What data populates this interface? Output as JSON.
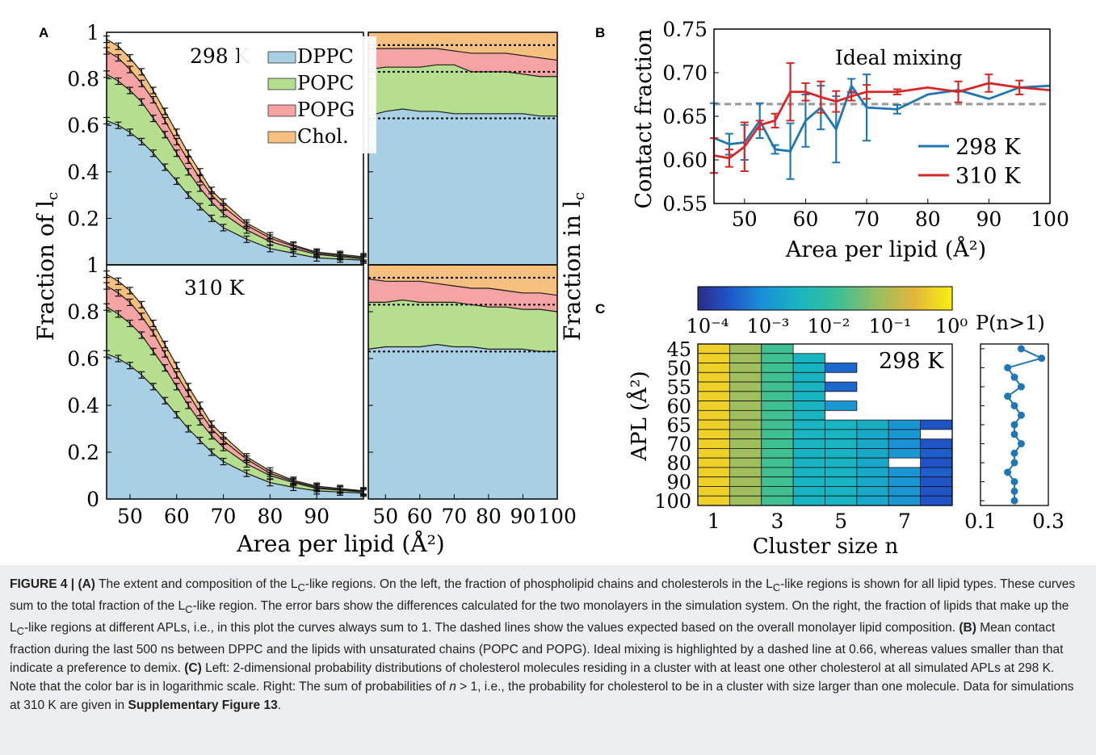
{
  "panel_labels": {
    "a": "A",
    "b": "B",
    "c": "C"
  },
  "colors": {
    "dppc": "#a8cfe3",
    "popc": "#b5df8f",
    "popg": "#f6a3a3",
    "chol": "#f7c07e",
    "blue_line": "#1f77b4",
    "red_line": "#d62728",
    "ideal_line": "#999999"
  },
  "panel_a": {
    "ylabel_left": "Fraction of l",
    "ylabel_left_sub": "c",
    "ylabel_right": "Fraction in l",
    "ylabel_right_sub": "c",
    "xlabel": "Area per lipid (Å²)",
    "temp_top": "298 K",
    "temp_bottom": "310 K",
    "legend": [
      "DPPC",
      "POPC",
      "POPG",
      "Chol."
    ],
    "yticks": [
      "0",
      "0.2",
      "0.4",
      "0.6",
      "0.8",
      "1"
    ],
    "xticks_left": [
      "50",
      "60",
      "70",
      "80",
      "90"
    ],
    "xticks_right": [
      "50",
      "60",
      "70",
      "80",
      "90",
      "100"
    ]
  },
  "panel_b": {
    "ylabel": "Contact fraction",
    "xlabel": "Area per lipid (Å²)",
    "annotation": "Ideal mixing",
    "legend": [
      "298 K",
      "310 K"
    ],
    "yticks": [
      "0.55",
      "0.60",
      "0.65",
      "0.70",
      "0.75"
    ],
    "xticks": [
      "50",
      "60",
      "70",
      "80",
      "90",
      "100"
    ]
  },
  "panel_c": {
    "colorbar_ticks": [
      "10⁻⁴",
      "10⁻³",
      "10⁻²",
      "10⁻¹",
      "10⁰"
    ],
    "side_title": "P(n>1)",
    "temp": "298 K",
    "ylabel": "APL (Å²)",
    "xlabel": "Cluster size n",
    "yticks": [
      "45",
      "50",
      "55",
      "60",
      "65",
      "70",
      "80",
      "90",
      "100"
    ],
    "xticks": [
      "1",
      "3",
      "5",
      "7"
    ],
    "side_xticks": [
      "0.1",
      "0.3"
    ]
  },
  "chart_data": [
    {
      "type": "area",
      "panel": "A-left-298K",
      "x": [
        45,
        47.5,
        50,
        52.5,
        55,
        57.5,
        60,
        62.5,
        65,
        67.5,
        70,
        75,
        80,
        85,
        90,
        95,
        100
      ],
      "series": [
        {
          "name": "DPPC",
          "cumulative": [
            0.62,
            0.6,
            0.57,
            0.53,
            0.48,
            0.42,
            0.36,
            0.3,
            0.25,
            0.2,
            0.16,
            0.11,
            0.07,
            0.05,
            0.03,
            0.025,
            0.02
          ]
        },
        {
          "name": "POPC",
          "cumulative": [
            0.82,
            0.79,
            0.75,
            0.7,
            0.63,
            0.56,
            0.48,
            0.4,
            0.33,
            0.27,
            0.22,
            0.15,
            0.1,
            0.07,
            0.045,
            0.035,
            0.025
          ]
        },
        {
          "name": "POPG",
          "cumulative": [
            0.92,
            0.89,
            0.84,
            0.78,
            0.71,
            0.62,
            0.53,
            0.45,
            0.37,
            0.3,
            0.25,
            0.17,
            0.115,
            0.08,
            0.05,
            0.04,
            0.03
          ]
        },
        {
          "name": "Chol.",
          "cumulative": [
            0.97,
            0.94,
            0.89,
            0.83,
            0.75,
            0.66,
            0.57,
            0.48,
            0.4,
            0.32,
            0.27,
            0.18,
            0.125,
            0.085,
            0.055,
            0.045,
            0.035
          ]
        }
      ],
      "ylim": [
        0,
        1
      ],
      "xlim": [
        45,
        100
      ]
    },
    {
      "type": "area",
      "panel": "A-right-298K",
      "x": [
        45,
        50,
        55,
        60,
        65,
        70,
        75,
        80,
        85,
        90,
        95,
        100
      ],
      "series": [
        {
          "name": "DPPC",
          "cumulative": [
            0.64,
            0.66,
            0.67,
            0.66,
            0.66,
            0.65,
            0.65,
            0.65,
            0.65,
            0.65,
            0.64,
            0.64
          ]
        },
        {
          "name": "POPC",
          "cumulative": [
            0.84,
            0.85,
            0.85,
            0.85,
            0.86,
            0.86,
            0.83,
            0.83,
            0.83,
            0.82,
            0.81,
            0.81
          ]
        },
        {
          "name": "POPG",
          "cumulative": [
            0.93,
            0.93,
            0.93,
            0.93,
            0.93,
            0.92,
            0.91,
            0.91,
            0.91,
            0.9,
            0.89,
            0.88
          ]
        },
        {
          "name": "Chol.",
          "cumulative": [
            1,
            1,
            1,
            1,
            1,
            1,
            1,
            1,
            1,
            1,
            1,
            1
          ]
        }
      ],
      "ideal_lines": [
        0.63,
        0.83,
        0.945
      ],
      "ylim": [
        0,
        1
      ],
      "xlim": [
        45,
        100
      ]
    },
    {
      "type": "area",
      "panel": "A-left-310K",
      "x": [
        45,
        47.5,
        50,
        52.5,
        55,
        57.5,
        60,
        62.5,
        65,
        67.5,
        70,
        75,
        80,
        85,
        90,
        95,
        100
      ],
      "series": [
        {
          "name": "DPPC",
          "cumulative": [
            0.62,
            0.6,
            0.57,
            0.53,
            0.48,
            0.42,
            0.36,
            0.3,
            0.25,
            0.2,
            0.16,
            0.11,
            0.07,
            0.05,
            0.035,
            0.03,
            0.025
          ]
        },
        {
          "name": "POPC",
          "cumulative": [
            0.82,
            0.79,
            0.75,
            0.7,
            0.63,
            0.56,
            0.48,
            0.4,
            0.33,
            0.27,
            0.22,
            0.15,
            0.1,
            0.07,
            0.045,
            0.038,
            0.03
          ]
        },
        {
          "name": "POPG",
          "cumulative": [
            0.91,
            0.88,
            0.84,
            0.78,
            0.71,
            0.62,
            0.53,
            0.45,
            0.37,
            0.3,
            0.25,
            0.17,
            0.11,
            0.075,
            0.05,
            0.04,
            0.033
          ]
        },
        {
          "name": "Chol.",
          "cumulative": [
            0.96,
            0.93,
            0.89,
            0.83,
            0.75,
            0.66,
            0.57,
            0.48,
            0.4,
            0.32,
            0.27,
            0.18,
            0.12,
            0.08,
            0.055,
            0.045,
            0.035
          ]
        }
      ],
      "ylim": [
        0,
        1
      ],
      "xlim": [
        45,
        100
      ]
    },
    {
      "type": "area",
      "panel": "A-right-310K",
      "x": [
        45,
        50,
        55,
        60,
        65,
        70,
        75,
        80,
        85,
        90,
        95,
        100
      ],
      "series": [
        {
          "name": "DPPC",
          "cumulative": [
            0.64,
            0.65,
            0.65,
            0.65,
            0.66,
            0.65,
            0.65,
            0.64,
            0.64,
            0.64,
            0.63,
            0.63
          ]
        },
        {
          "name": "POPC",
          "cumulative": [
            0.84,
            0.84,
            0.85,
            0.84,
            0.84,
            0.84,
            0.83,
            0.82,
            0.82,
            0.81,
            0.81,
            0.8
          ]
        },
        {
          "name": "POPG",
          "cumulative": [
            0.94,
            0.93,
            0.93,
            0.93,
            0.92,
            0.91,
            0.9,
            0.9,
            0.89,
            0.88,
            0.88,
            0.87
          ]
        },
        {
          "name": "Chol.",
          "cumulative": [
            1,
            1,
            1,
            1,
            1,
            1,
            1,
            1,
            1,
            1,
            1,
            1
          ]
        }
      ],
      "ideal_lines": [
        0.63,
        0.83,
        0.945
      ],
      "ylim": [
        0,
        1
      ],
      "xlim": [
        45,
        100
      ]
    },
    {
      "type": "line",
      "panel": "B",
      "x": [
        45,
        47.5,
        50,
        52.5,
        55,
        57.5,
        60,
        62.5,
        65,
        67.5,
        70,
        75,
        80,
        85,
        90,
        95,
        100
      ],
      "series": [
        {
          "name": "298 K",
          "values": [
            0.625,
            0.618,
            0.62,
            0.645,
            0.612,
            0.61,
            0.645,
            0.66,
            0.635,
            0.685,
            0.66,
            0.658,
            0.675,
            0.68,
            0.67,
            0.683,
            0.685
          ],
          "errors": [
            0.04,
            0.012,
            0.02,
            0.02,
            0.005,
            0.032,
            0.03,
            0.025,
            0.038,
            0.008,
            0.038,
            0.005,
            0,
            0,
            0,
            0,
            0
          ]
        },
        {
          "name": "310 K",
          "values": [
            0.605,
            0.602,
            0.615,
            0.64,
            0.645,
            0.678,
            0.678,
            0.672,
            0.667,
            0.673,
            0.678,
            0.678,
            0.683,
            0.678,
            0.688,
            0.683,
            0.68
          ],
          "errors": [
            0.02,
            0.01,
            0.028,
            0.005,
            0.008,
            0.033,
            0.01,
            0.018,
            0.012,
            0.005,
            0.008,
            0.003,
            0,
            0.012,
            0.01,
            0.008,
            0
          ]
        }
      ],
      "ideal_mixing": 0.664,
      "xlim": [
        45,
        100
      ],
      "ylim": [
        0.55,
        0.75
      ]
    },
    {
      "type": "heatmap",
      "panel": "C-left",
      "rows": [
        "45",
        "47.5",
        "50",
        "52.5",
        "55",
        "57.5",
        "60",
        "62.5",
        "65",
        "67.5",
        "70",
        "75",
        "80",
        "85",
        "90",
        "95",
        "100"
      ],
      "columns": [
        1,
        2,
        3,
        4,
        5,
        6,
        7,
        8
      ],
      "log10_values": [
        [
          -0.35,
          -1.2,
          -1.9,
          null,
          null,
          null,
          null,
          null
        ],
        [
          -0.35,
          -1.2,
          -1.9,
          -2.6,
          null,
          null,
          null,
          null
        ],
        [
          -0.35,
          -1.2,
          -1.9,
          -2.6,
          -3.6,
          null,
          null,
          null
        ],
        [
          -0.35,
          -1.2,
          -1.9,
          -2.6,
          null,
          null,
          null,
          null
        ],
        [
          -0.35,
          -1.2,
          -1.9,
          -2.6,
          -3.6,
          null,
          null,
          null
        ],
        [
          -0.35,
          -1.2,
          -1.9,
          -2.6,
          null,
          null,
          null,
          null
        ],
        [
          -0.35,
          -1.2,
          -1.9,
          -2.6,
          -3.1,
          null,
          null,
          null
        ],
        [
          -0.35,
          -1.2,
          -1.9,
          -2.6,
          null,
          null,
          null,
          null
        ],
        [
          -0.35,
          -1.2,
          -1.9,
          -2.6,
          -2.6,
          -2.7,
          -3.1,
          -3.8
        ],
        [
          -0.35,
          -1.2,
          -1.9,
          -2.6,
          -2.6,
          -2.8,
          -3.1,
          null
        ],
        [
          -0.35,
          -1.2,
          -1.9,
          -2.6,
          -2.6,
          -2.8,
          -3.2,
          -3.8
        ],
        [
          -0.35,
          -1.2,
          -1.9,
          -2.6,
          -2.6,
          -2.8,
          -3.1,
          -3.7
        ],
        [
          -0.35,
          -1.2,
          -1.9,
          -2.6,
          -2.6,
          -2.8,
          null,
          -3.8
        ],
        [
          -0.35,
          -1.2,
          -1.9,
          -2.6,
          -2.6,
          -2.8,
          -3.1,
          -3.7
        ],
        [
          -0.35,
          -1.2,
          -1.9,
          -2.6,
          -2.6,
          -2.8,
          -3.1,
          -3.8
        ],
        [
          -0.35,
          -1.2,
          -1.9,
          -2.6,
          -2.6,
          -2.8,
          -3.1,
          -3.8
        ],
        [
          -0.35,
          -1.2,
          -1.9,
          -2.6,
          -2.6,
          -2.8,
          -3.1,
          -3.8
        ]
      ],
      "colorbar_range": [
        -4.3,
        0
      ]
    },
    {
      "type": "line",
      "panel": "C-right",
      "y": [
        45,
        47.5,
        50,
        52.5,
        55,
        57.5,
        60,
        62.5,
        65,
        67.5,
        70,
        75,
        80,
        85,
        90,
        95,
        100
      ],
      "values": [
        0.22,
        0.28,
        0.18,
        0.2,
        0.22,
        0.18,
        0.2,
        0.22,
        0.2,
        0.2,
        0.22,
        0.2,
        0.2,
        0.18,
        0.2,
        0.2,
        0.2
      ],
      "xlim": [
        0.1,
        0.3
      ]
    }
  ],
  "caption": {
    "fig_label": "FIGURE 4 |",
    "a_tag": "(A)",
    "a_text_1": " The extent and composition of the L",
    "a_sub": "C",
    "a_text_2": "-like regions. On the left, the fraction of phospholipid chains and cholesterols in the L",
    "a_text_3": "-like regions is shown for all lipid types. These curves sum to the total fraction of the L",
    "a_text_4": "-like region. The error bars show the differences calculated for the two monolayers in the simulation system. On the right, the fraction of lipids that make up the L",
    "a_text_5": "-like regions at different APLs, i.e., in this plot the curves always sum to 1. The dashed lines show the values expected based on the overall monolayer lipid composition. ",
    "b_tag": "(B)",
    "b_text": " Mean contact fraction during the last 500 ns between DPPC and the lipids with unsaturated chains (POPC and POPG). Ideal mixing is highlighted by a dashed line at 0.66, whereas values smaller than that indicate a preference to demix. ",
    "c_tag": "(C)",
    "c_text_1": " Left: 2-dimensional probability distributions of cholesterol molecules residing in a cluster with at least one other cholesterol at all simulated APLs at 298 K. Note that the color bar is in logarithmic scale. Right: The sum of probabilities of ",
    "c_n": "n",
    "c_text_2": " > 1, i.e., the probability for cholesterol to be in a cluster with size larger than one molecule. Data for simulations at 310 K are given in ",
    "c_supp": "Supplementary Figure 13",
    "c_end": "."
  }
}
